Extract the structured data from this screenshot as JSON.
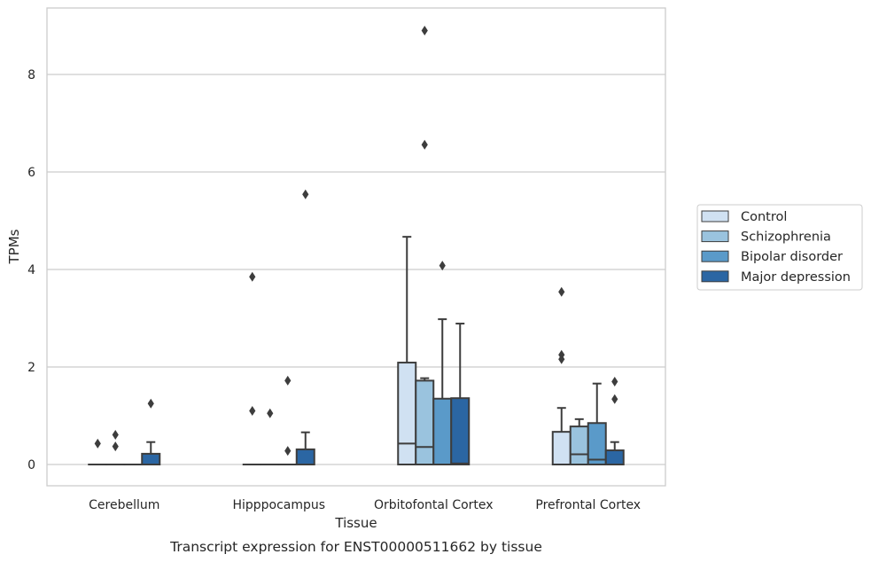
{
  "chart_data": {
    "type": "boxplot",
    "caption": "Transcript expression for ENST00000511662 by tissue",
    "xlabel": "Tissue",
    "ylabel": "TPMs",
    "ylim": [
      -0.44,
      9.4
    ],
    "yticks": [
      0,
      2,
      4,
      6,
      8
    ],
    "grid": "horizontal",
    "legend_position": "right",
    "categories": [
      "Cerebellum",
      "Hipppocampus",
      "Orbitofontal Cortex",
      "Prefrontal Cortex"
    ],
    "series": [
      {
        "name": "Control",
        "color": "#d0e1f2",
        "boxes": [
          {
            "q1": 0,
            "median": 0,
            "q3": 0,
            "whisker_low": 0,
            "whisker_high": 0,
            "outliers": [
              0.43
            ]
          },
          {
            "q1": 0,
            "median": 0,
            "q3": 0,
            "whisker_low": 0,
            "whisker_high": 0,
            "outliers": [
              3.85,
              1.1
            ]
          },
          {
            "q1": 0,
            "median": 0.43,
            "q3": 2.09,
            "whisker_low": 0,
            "whisker_high": 4.67,
            "outliers": []
          },
          {
            "q1": 0,
            "median": 0,
            "q3": 0.67,
            "whisker_low": 0,
            "whisker_high": 1.16,
            "outliers": [
              3.54,
              2.25,
              2.16
            ]
          }
        ]
      },
      {
        "name": "Schizophrenia",
        "color": "#9ac3de",
        "boxes": [
          {
            "q1": 0,
            "median": 0,
            "q3": 0,
            "whisker_low": 0,
            "whisker_high": 0,
            "outliers": [
              0.61,
              0.37
            ]
          },
          {
            "q1": 0,
            "median": 0,
            "q3": 0,
            "whisker_low": 0,
            "whisker_high": 0,
            "outliers": [
              1.05
            ]
          },
          {
            "q1": 0,
            "median": 0.36,
            "q3": 1.72,
            "whisker_low": 0,
            "whisker_high": 1.77,
            "outliers": [
              8.9,
              6.56
            ]
          },
          {
            "q1": 0,
            "median": 0.21,
            "q3": 0.78,
            "whisker_low": 0,
            "whisker_high": 0.93,
            "outliers": []
          }
        ]
      },
      {
        "name": "Bipolar disorder",
        "color": "#5a9ac9",
        "boxes": [
          {
            "q1": 0,
            "median": 0,
            "q3": 0,
            "whisker_low": 0,
            "whisker_high": 0,
            "outliers": []
          },
          {
            "q1": 0,
            "median": 0,
            "q3": 0,
            "whisker_low": 0,
            "whisker_high": 0,
            "outliers": [
              1.72,
              0.28
            ]
          },
          {
            "q1": 0,
            "median": 0,
            "q3": 1.35,
            "whisker_low": 0,
            "whisker_high": 2.98,
            "outliers": [
              4.08
            ]
          },
          {
            "q1": 0,
            "median": 0.1,
            "q3": 0.85,
            "whisker_low": 0,
            "whisker_high": 1.66,
            "outliers": []
          }
        ]
      },
      {
        "name": "Major depression",
        "color": "#2b66a3",
        "boxes": [
          {
            "q1": 0,
            "median": 0,
            "q3": 0.22,
            "whisker_low": 0,
            "whisker_high": 0.46,
            "outliers": [
              1.25
            ]
          },
          {
            "q1": 0,
            "median": 0,
            "q3": 0.31,
            "whisker_low": 0,
            "whisker_high": 0.66,
            "outliers": [
              5.54
            ]
          },
          {
            "q1": 0,
            "median": 0.02,
            "q3": 1.36,
            "whisker_low": 0,
            "whisker_high": 2.89,
            "outliers": []
          },
          {
            "q1": 0,
            "median": 0,
            "q3": 0.29,
            "whisker_low": 0,
            "whisker_high": 0.46,
            "outliers": [
              1.7,
              1.34
            ]
          }
        ]
      }
    ]
  }
}
